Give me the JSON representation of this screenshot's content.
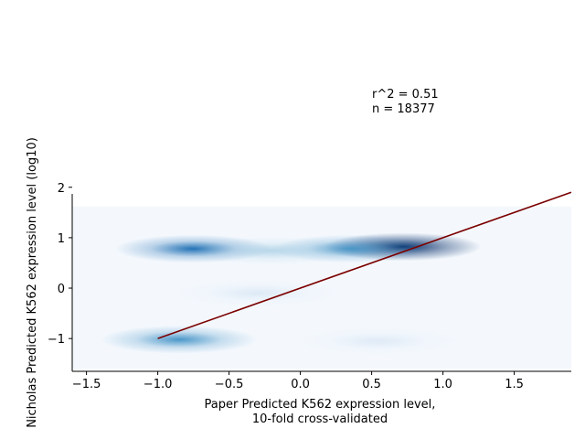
{
  "chart_data": {
    "type": "heatmap",
    "subtype": "kde-density-with-fit-line",
    "colormap": "Blues",
    "xlabel_lines": [
      "Paper Predicted K562 expression level,",
      "10-fold cross-validated"
    ],
    "ylabel": "Nicholas Predicted K562 expression level (log10)",
    "xlim": [
      -1.6,
      1.9
    ],
    "ylim": [
      -1.65,
      2.05
    ],
    "xticks": [
      -1.5,
      -1.0,
      -0.5,
      0.0,
      0.5,
      1.0,
      1.5
    ],
    "xtick_labels": [
      "−1.5",
      "−1.0",
      "−0.5",
      "0.0",
      "0.5",
      "1.0",
      "1.5"
    ],
    "yticks": [
      -1,
      0,
      1,
      2
    ],
    "ytick_labels": [
      "−1",
      "0",
      "1",
      "2"
    ],
    "density_extent": {
      "x": [
        -1.6,
        1.9
      ],
      "y": [
        -1.6,
        1.62
      ]
    },
    "density_clusters": [
      {
        "x": 0.72,
        "y": 0.82,
        "intensity": 1.0
      },
      {
        "x": 0.35,
        "y": 0.78,
        "intensity": 0.6
      },
      {
        "x": -0.75,
        "y": 0.78,
        "intensity": 0.65
      },
      {
        "x": -0.2,
        "y": 0.74,
        "intensity": 0.35
      },
      {
        "x": -0.85,
        "y": -1.02,
        "intensity": 0.6
      },
      {
        "x": 0.55,
        "y": -1.05,
        "intensity": 0.12
      },
      {
        "x": -0.3,
        "y": -0.1,
        "intensity": 0.15
      }
    ],
    "fit_line": {
      "x": [
        -1.0,
        1.9
      ],
      "y": [
        -1.0,
        1.9
      ],
      "color": "#7b0000"
    },
    "annotation_lines": [
      "r^2 = 0.51",
      "n = 18377"
    ],
    "annotation_anchor": {
      "x": 0.5,
      "y": 4.2
    },
    "spines": [
      "left",
      "bottom"
    ]
  }
}
